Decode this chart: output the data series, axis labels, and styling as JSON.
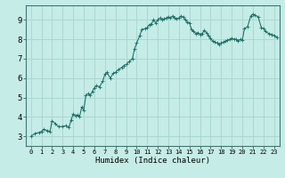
{
  "xlabel": "Humidex (Indice chaleur)",
  "background_color": "#c5ece6",
  "grid_color": "#aad8d0",
  "line_color": "#1a6e64",
  "marker_color": "#1a6e64",
  "xlim": [
    -0.5,
    23.5
  ],
  "ylim": [
    2.5,
    9.75
  ],
  "xtick_labels": [
    "0",
    "1",
    "2",
    "3",
    "4",
    "5",
    "6",
    "7",
    "8",
    "9",
    "10",
    "11",
    "12",
    "13",
    "14",
    "15",
    "16",
    "17",
    "18",
    "19",
    "20",
    "21",
    "22",
    "23"
  ],
  "ytick_values": [
    3,
    4,
    5,
    6,
    7,
    8,
    9
  ],
  "data_x": [
    0.0,
    0.4,
    0.8,
    1.0,
    1.2,
    1.5,
    1.8,
    2.0,
    2.3,
    2.6,
    3.0,
    3.3,
    3.6,
    3.8,
    4.0,
    4.2,
    4.4,
    4.6,
    4.8,
    5.0,
    5.2,
    5.4,
    5.6,
    5.8,
    6.0,
    6.2,
    6.5,
    6.8,
    7.0,
    7.2,
    7.5,
    7.8,
    8.0,
    8.3,
    8.6,
    8.8,
    9.0,
    9.3,
    9.6,
    9.8,
    10.0,
    10.3,
    10.5,
    10.8,
    11.0,
    11.2,
    11.4,
    11.6,
    11.8,
    12.0,
    12.2,
    12.4,
    12.6,
    12.8,
    13.0,
    13.2,
    13.4,
    13.6,
    13.8,
    14.0,
    14.2,
    14.4,
    14.6,
    14.8,
    15.0,
    15.2,
    15.4,
    15.6,
    15.8,
    16.0,
    16.2,
    16.4,
    16.6,
    16.8,
    17.0,
    17.2,
    17.4,
    17.6,
    17.8,
    18.0,
    18.2,
    18.4,
    18.6,
    18.8,
    19.0,
    19.2,
    19.4,
    19.6,
    19.8,
    20.0,
    20.2,
    20.5,
    20.8,
    21.0,
    21.2,
    21.5,
    21.8,
    22.0,
    22.2,
    22.5,
    22.8,
    23.0,
    23.3
  ],
  "data_y": [
    3.0,
    3.15,
    3.2,
    3.25,
    3.35,
    3.3,
    3.25,
    3.8,
    3.65,
    3.5,
    3.5,
    3.55,
    3.45,
    3.85,
    4.15,
    4.05,
    4.1,
    4.0,
    4.5,
    4.35,
    5.1,
    5.2,
    5.1,
    5.3,
    5.5,
    5.6,
    5.55,
    5.85,
    6.2,
    6.3,
    6.0,
    6.25,
    6.3,
    6.45,
    6.55,
    6.65,
    6.7,
    6.85,
    7.0,
    7.5,
    7.8,
    8.2,
    8.5,
    8.55,
    8.6,
    8.75,
    8.8,
    9.0,
    8.85,
    9.0,
    9.1,
    9.0,
    9.05,
    9.1,
    9.15,
    9.1,
    9.2,
    9.1,
    9.05,
    9.1,
    9.2,
    9.15,
    9.0,
    8.9,
    8.85,
    8.5,
    8.4,
    8.3,
    8.35,
    8.25,
    8.3,
    8.45,
    8.35,
    8.2,
    8.05,
    7.9,
    7.85,
    7.8,
    7.75,
    7.8,
    7.85,
    7.9,
    7.95,
    8.0,
    8.05,
    8.0,
    8.0,
    7.9,
    8.0,
    7.95,
    8.55,
    8.65,
    9.2,
    9.3,
    9.25,
    9.15,
    8.6,
    8.55,
    8.4,
    8.3,
    8.25,
    8.2,
    8.1
  ]
}
